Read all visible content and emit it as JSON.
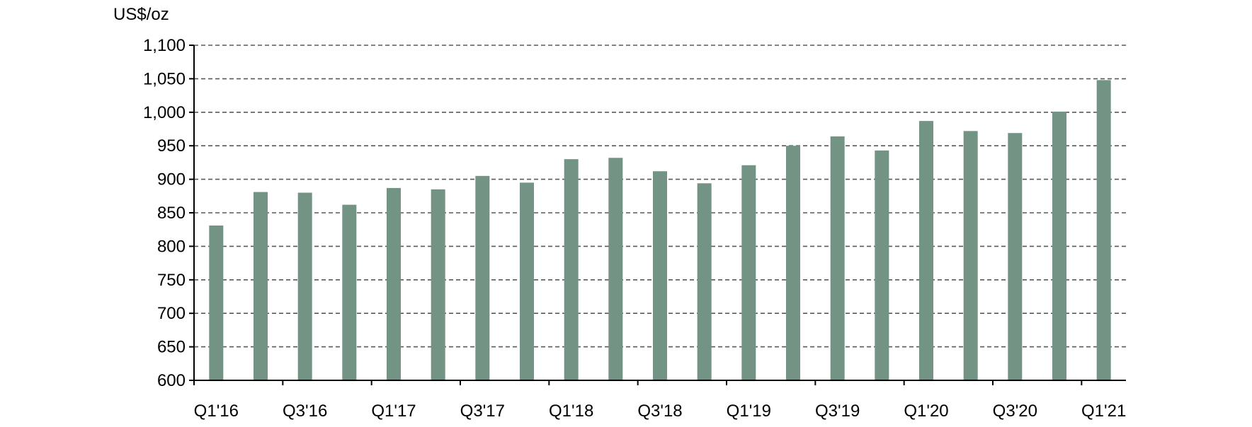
{
  "chart_data": {
    "type": "bar",
    "ylabel": "US$/oz",
    "ylim": [
      600,
      1100
    ],
    "ytick_step": 50,
    "yticks": [
      "600",
      "650",
      "700",
      "750",
      "800",
      "850",
      "900",
      "950",
      "1,000",
      "1,050",
      "1,100"
    ],
    "grid": true,
    "categories": [
      "Q1'16",
      "Q2'16",
      "Q3'16",
      "Q4'16",
      "Q1'17",
      "Q2'17",
      "Q3'17",
      "Q4'17",
      "Q1'18",
      "Q2'18",
      "Q3'18",
      "Q4'18",
      "Q1'19",
      "Q2'19",
      "Q3'19",
      "Q4'19",
      "Q1'20",
      "Q2'20",
      "Q3'20",
      "Q4'20",
      "Q1'21"
    ],
    "shown_xtick_labels": [
      "Q1'16",
      "Q3'16",
      "Q1'17",
      "Q3'17",
      "Q1'18",
      "Q3'18",
      "Q1'19",
      "Q3'19",
      "Q1'20",
      "Q3'20",
      "Q1'21"
    ],
    "values": [
      831,
      881,
      880,
      862,
      887,
      885,
      905,
      895,
      930,
      932,
      912,
      894,
      921,
      950,
      964,
      943,
      987,
      972,
      969,
      1001,
      1048
    ],
    "bar_color": "#739485"
  }
}
